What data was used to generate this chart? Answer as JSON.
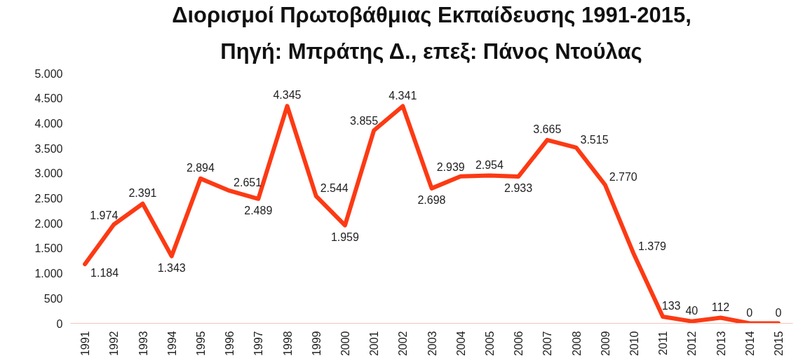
{
  "chart_data": {
    "type": "line",
    "title": "Διορισμοί Πρωτοβάθμιας Εκπαίδευσης 1991-2015,",
    "subtitle": "Πηγή: Μπράτης Δ., επεξ: Πάνος Ντούλας",
    "categories": [
      "1991",
      "1992",
      "1993",
      "1994",
      "1995",
      "1996",
      "1997",
      "1998",
      "1999",
      "2000",
      "2001",
      "2002",
      "2003",
      "2004",
      "2005",
      "2006",
      "2007",
      "2008",
      "2009",
      "2010",
      "2011",
      "2012",
      "2013",
      "2014",
      "2015"
    ],
    "values": [
      1184,
      1974,
      2391,
      1343,
      2894,
      2651,
      2489,
      4345,
      2544,
      1959,
      3855,
      4341,
      2698,
      2939,
      2954,
      2933,
      3665,
      3515,
      2770,
      1379,
      133,
      40,
      112,
      0,
      0
    ],
    "value_labels": [
      "1.184",
      "1.974",
      "2.391",
      "1.343",
      "2.894",
      "2.651",
      "2.489",
      "4.345",
      "2.544",
      "1.959",
      "3.855",
      "4.341",
      "2.698",
      "2.939",
      "2.954",
      "2.933",
      "3.665",
      "3.515",
      "2.770",
      "1.379",
      "133",
      "40",
      "112",
      "0",
      "0"
    ],
    "color": "#fc3a14",
    "line_style": "solid",
    "grid": false,
    "ylim": [
      0,
      5000
    ],
    "yticks": [
      0,
      500,
      {
        "value": 1000,
        "label": "1.000"
      },
      {
        "value": 1500,
        "label": "1.500"
      },
      {
        "value": 2000,
        "label": "2.000"
      },
      {
        "value": 2500,
        "label": "2.500"
      },
      {
        "value": 3000,
        "label": "3.000"
      },
      {
        "value": 3500,
        "label": "3.500"
      },
      {
        "value": 4000,
        "label": "4.000"
      },
      {
        "value": 4500,
        "label": "4.500"
      },
      {
        "value": 5000,
        "label": "5.000"
      }
    ]
  }
}
